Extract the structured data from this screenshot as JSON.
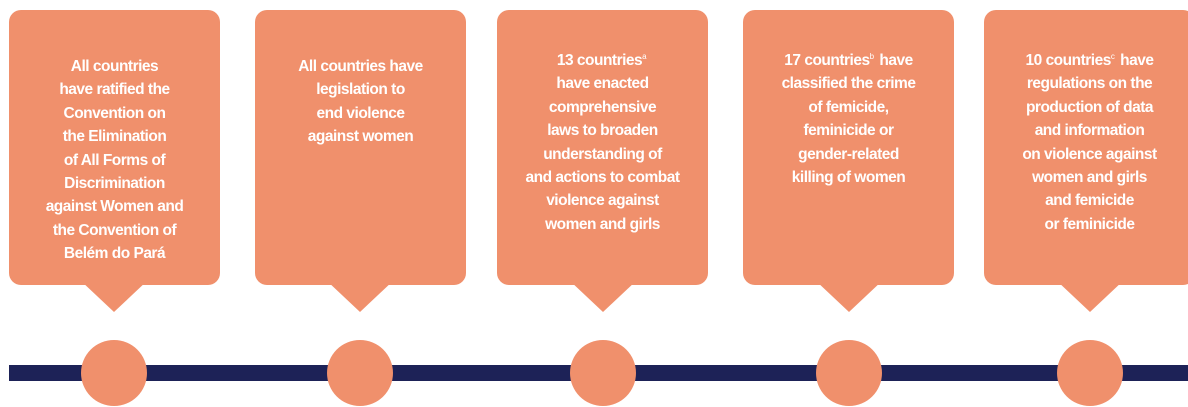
{
  "boxes": [
    {
      "lines": [
        "All countries",
        "have ratified the",
        "Convention on",
        "the Elimination",
        "of All Forms of",
        "Discrimination",
        "against Women and",
        "the Convention of",
        "Belém do Pará"
      ]
    },
    {
      "lines": [
        "All countries have",
        "legislation to",
        "end violence",
        "against women"
      ]
    },
    {
      "lead": "13 countries",
      "note": "a",
      "lines": [
        "have enacted",
        "comprehensive",
        "laws to broaden",
        "understanding of",
        "and actions to combat",
        "violence against",
        "women and girls"
      ]
    },
    {
      "lead": "17 countries",
      "note": "b",
      "after": "have",
      "lines": [
        "classified the crime",
        "of femicide,",
        "feminicide or",
        "gender-related",
        "killing of women"
      ]
    },
    {
      "lead": "10 countries",
      "note": "c",
      "after": "have",
      "lines": [
        "regulations on the",
        "production of data",
        "and information",
        "on violence against",
        "women and girls",
        "and femicide",
        "or feminicide"
      ]
    }
  ]
}
